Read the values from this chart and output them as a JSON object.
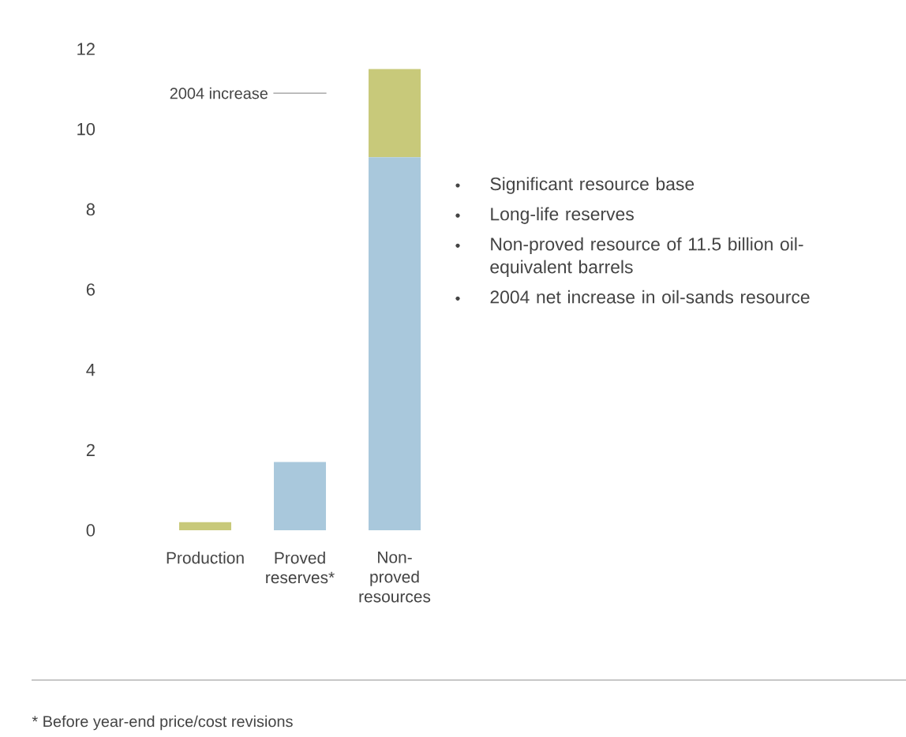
{
  "chart_data": {
    "type": "bar",
    "stacked": true,
    "categories": [
      "Production",
      "Proved reserves*",
      "Non-proved resources"
    ],
    "series": [
      {
        "color": "#a9c8dc",
        "values": [
          null,
          1.7,
          9.3
        ]
      },
      {
        "color": "#c8c97a",
        "values": [
          0.2,
          null,
          2.2
        ]
      }
    ],
    "ylim": [
      0,
      12
    ],
    "yticks": [
      0,
      2,
      4,
      6,
      8,
      10,
      12
    ],
    "grid": false,
    "annotations": [
      "2004 increase",
      "Significant resource base",
      "Long-life reserves",
      "Non-proved resource of 11.5 billion oil-equivalent barrels",
      "2004 net increase in oil-sands resource",
      "* Before year-end price/cost revisions"
    ]
  }
}
